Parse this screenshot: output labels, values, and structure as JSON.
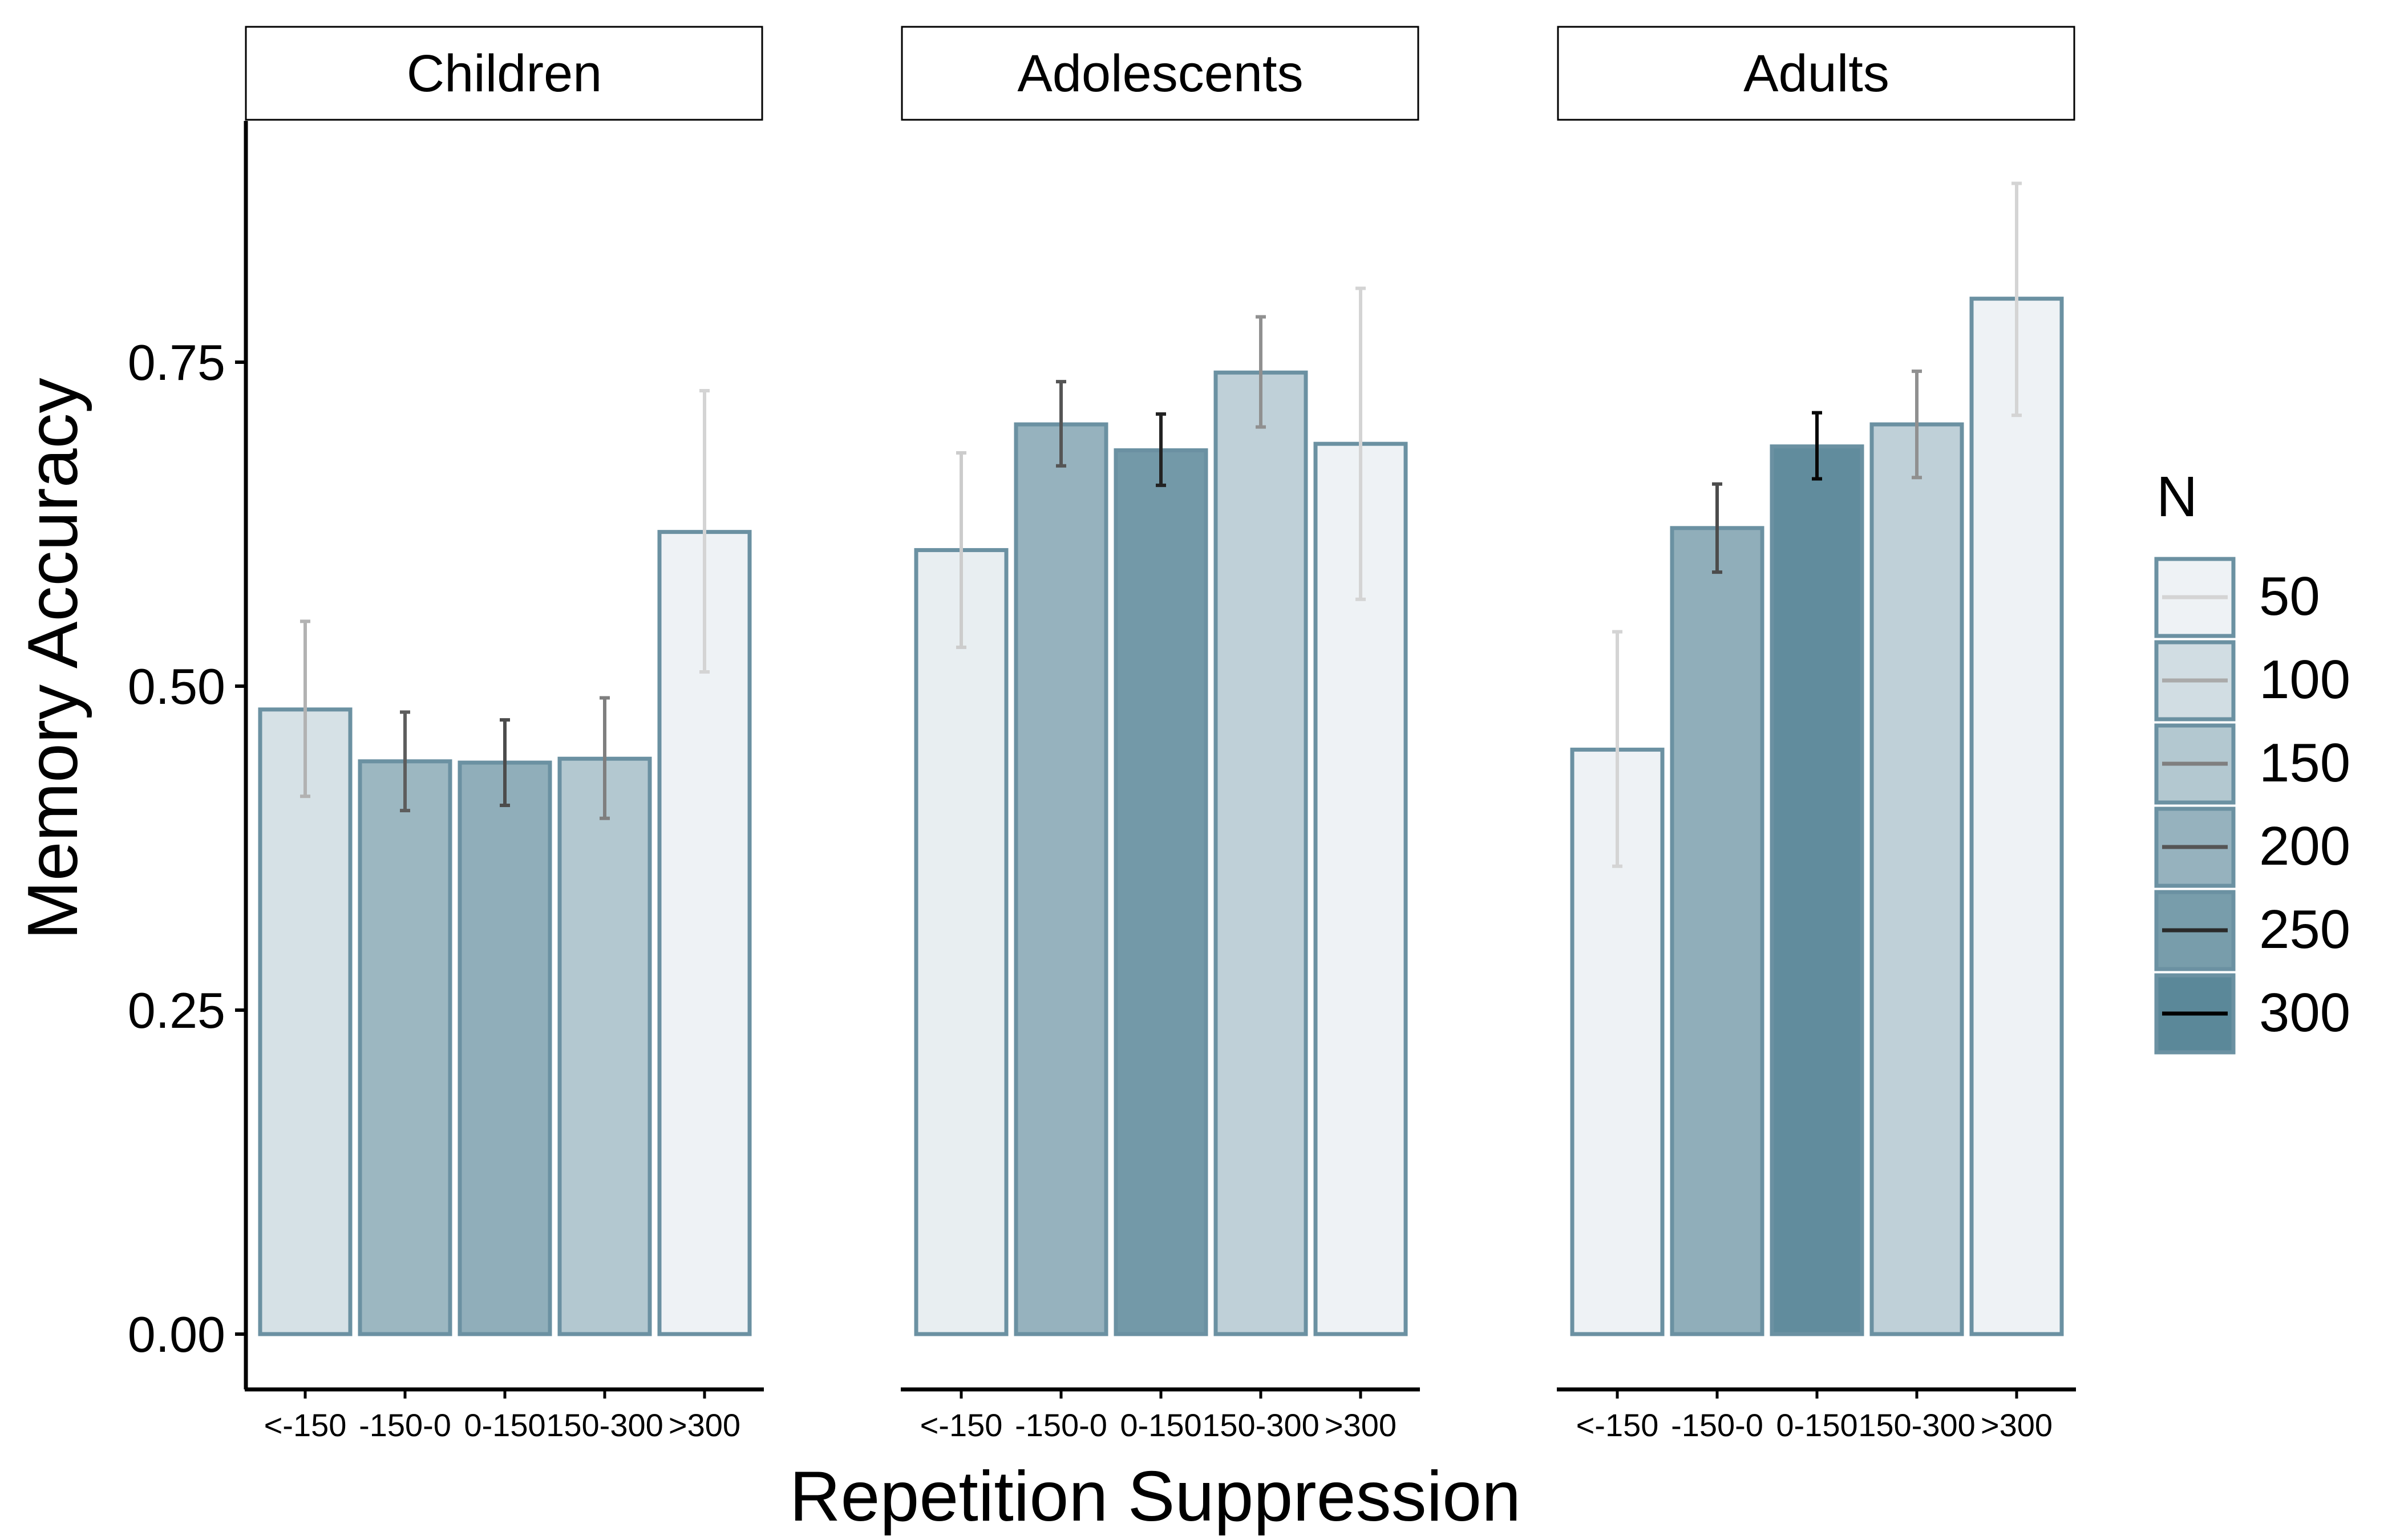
{
  "chart_data": {
    "type": "bar",
    "xlabel": "Repetition Suppression",
    "ylabel": "Memory Accuracy",
    "ylim": [
      0,
      0.98
    ],
    "yticks": [
      0,
      0.25,
      0.5,
      0.75
    ],
    "ytick_labels": [
      "0.00",
      "0.25",
      "0.50",
      "0.75"
    ],
    "grid": false,
    "categories": [
      "<-150",
      "-150-0",
      "0-150",
      "150-300",
      ">300"
    ],
    "legend": {
      "title": "N",
      "position": "right",
      "values": [
        50,
        100,
        150,
        200,
        250,
        300
      ],
      "labels": [
        "50",
        "100",
        "150",
        "200",
        "250",
        "300"
      ]
    },
    "panels": [
      {
        "label": "Children",
        "bars": [
          {
            "category": "<-150",
            "value": 0.482,
            "error_low": 0.415,
            "error_high": 0.55,
            "n": 90
          },
          {
            "category": "-150-0",
            "value": 0.442,
            "error_low": 0.404,
            "error_high": 0.48,
            "n": 190
          },
          {
            "category": "0-150",
            "value": 0.441,
            "error_low": 0.408,
            "error_high": 0.474,
            "n": 210
          },
          {
            "category": "150-300",
            "value": 0.444,
            "error_low": 0.398,
            "error_high": 0.491,
            "n": 150
          },
          {
            "category": ">300",
            "value": 0.619,
            "error_low": 0.511,
            "error_high": 0.728,
            "n": 40
          }
        ]
      },
      {
        "label": "Adolescents",
        "bars": [
          {
            "category": "<-150",
            "value": 0.605,
            "error_low": 0.53,
            "error_high": 0.68,
            "n": 60
          },
          {
            "category": "-150-0",
            "value": 0.702,
            "error_low": 0.67,
            "error_high": 0.735,
            "n": 200
          },
          {
            "category": "0-150",
            "value": 0.682,
            "error_low": 0.655,
            "error_high": 0.71,
            "n": 260
          },
          {
            "category": "150-300",
            "value": 0.742,
            "error_low": 0.7,
            "error_high": 0.785,
            "n": 130
          },
          {
            "category": ">300",
            "value": 0.687,
            "error_low": 0.567,
            "error_high": 0.807,
            "n": 30
          }
        ]
      },
      {
        "label": "Adults",
        "bars": [
          {
            "category": "<-150",
            "value": 0.451,
            "error_low": 0.361,
            "error_high": 0.542,
            "n": 40
          },
          {
            "category": "-150-0",
            "value": 0.622,
            "error_low": 0.588,
            "error_high": 0.656,
            "n": 210
          },
          {
            "category": "0-150",
            "value": 0.685,
            "error_low": 0.66,
            "error_high": 0.711,
            "n": 290
          },
          {
            "category": "150-300",
            "value": 0.702,
            "error_low": 0.661,
            "error_high": 0.743,
            "n": 130
          },
          {
            "category": ">300",
            "value": 0.799,
            "error_low": 0.709,
            "error_high": 0.888,
            "n": 30
          }
        ]
      }
    ],
    "colors": {
      "bar_outline": "#6b91a2",
      "fill_light": "#eef2f5",
      "fill_dark": "#5b8899",
      "error_light": "#d4d4d4",
      "error_dark": "#000000",
      "axis": "#000000",
      "strip_border": "#000000"
    }
  }
}
